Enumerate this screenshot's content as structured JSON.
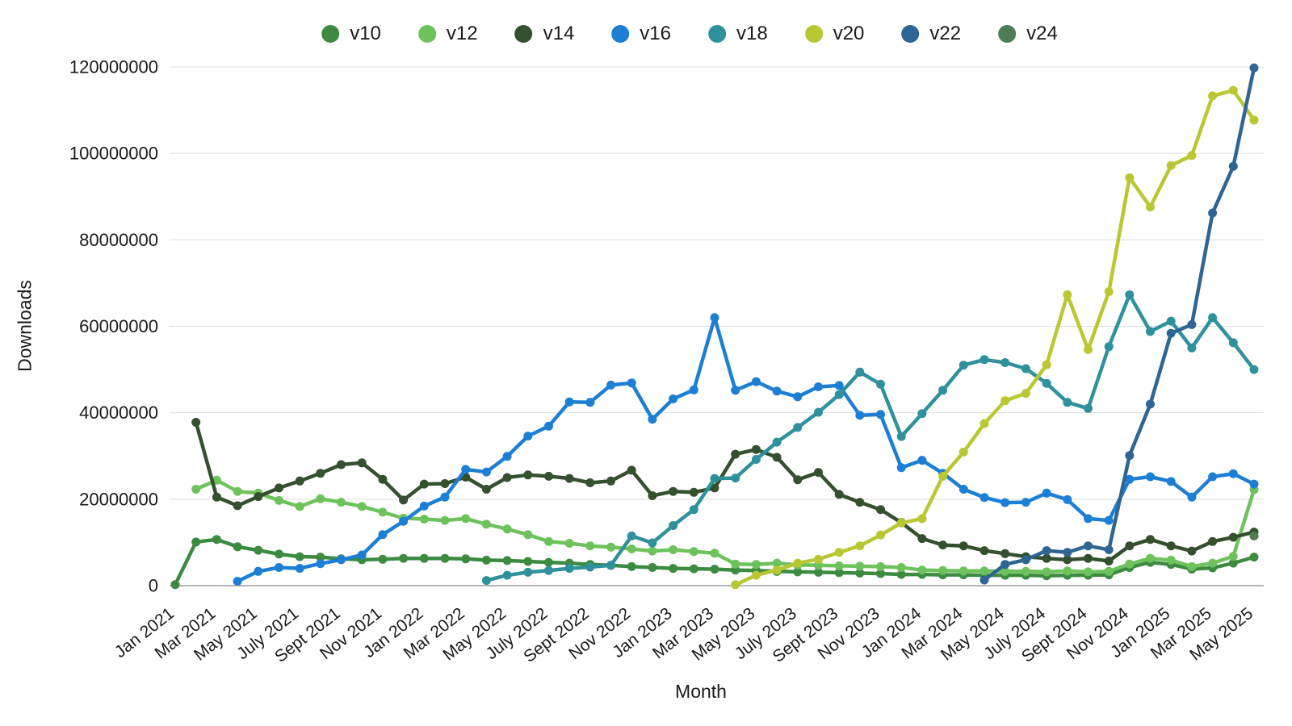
{
  "chart_data": {
    "type": "line",
    "title": "",
    "xlabel": "Month",
    "ylabel": "Downloads",
    "ylim": [
      0,
      120000000
    ],
    "y_ticks": [
      0,
      20000000,
      40000000,
      60000000,
      80000000,
      100000000,
      120000000
    ],
    "x_tick_every": 2,
    "months_total": 53,
    "grid": "horizontal-only",
    "legend_position": "top-center",
    "x_tick_labels": [
      "Jan 2021",
      "Mar 2021",
      "May 2021",
      "July 2021",
      "Sept 2021",
      "Nov 2021",
      "Jan 2022",
      "Mar 2022",
      "May 2022",
      "July 2022",
      "Sept 2022",
      "Nov 2022",
      "Jan 2023",
      "Mar 2023",
      "May 2023",
      "July 2023",
      "Sept 2023",
      "Nov 2023",
      "Jan 2024",
      "Mar 2024",
      "May 2024",
      "July 2024",
      "Sept 2024",
      "Nov 2024",
      "Jan 2025",
      "Mar 2025",
      "May 2025"
    ],
    "series": [
      {
        "name": "v10",
        "color": "#3d8b41",
        "values": [
          250000,
          10100000,
          10700000,
          9000000,
          8200000,
          7300000,
          6700000,
          6600000,
          6200000,
          6000000,
          6100000,
          6300000,
          6300000,
          6300000,
          6200000,
          5900000,
          5800000,
          5600000,
          5400000,
          5200000,
          4900000,
          4700000,
          4400000,
          4200000,
          4000000,
          3900000,
          3800000,
          3600000,
          3500000,
          3300000,
          3200000,
          3100000,
          3000000,
          2900000,
          2800000,
          2600000,
          2600000,
          2500000,
          2500000,
          2400000,
          2400000,
          2400000,
          2300000,
          2400000,
          2400000,
          2500000,
          4200000,
          5400000,
          4900000,
          3800000,
          4100000,
          5200000,
          6600000
        ]
      },
      {
        "name": "v12",
        "color": "#6ec25c",
        "values": [
          null,
          22300000,
          24400000,
          21800000,
          21400000,
          19700000,
          18300000,
          20100000,
          19300000,
          18300000,
          17000000,
          15600000,
          15400000,
          15100000,
          15500000,
          14200000,
          13100000,
          11800000,
          10200000,
          9800000,
          9200000,
          8900000,
          8500000,
          8000000,
          8300000,
          7900000,
          7500000,
          5000000,
          4900000,
          5200000,
          4800000,
          4700000,
          4600000,
          4500000,
          4400000,
          4200000,
          3600000,
          3500000,
          3400000,
          3400000,
          3300000,
          3300000,
          3200000,
          3400000,
          3200000,
          3300000,
          5000000,
          6300000,
          5900000,
          4400000,
          5200000,
          6800000,
          22200000
        ]
      },
      {
        "name": "v14",
        "color": "#34502e",
        "values": [
          null,
          37800000,
          20500000,
          18500000,
          20600000,
          22600000,
          24200000,
          26000000,
          28000000,
          28400000,
          24600000,
          19800000,
          23500000,
          23600000,
          25100000,
          22300000,
          25000000,
          25600000,
          25300000,
          24800000,
          23800000,
          24200000,
          26700000,
          20800000,
          21800000,
          21600000,
          22600000,
          30400000,
          31500000,
          29700000,
          24500000,
          26200000,
          21100000,
          19300000,
          17600000,
          14600000,
          10900000,
          9400000,
          9200000,
          8100000,
          7400000,
          6700000,
          6300000,
          6000000,
          6300000,
          5700000,
          9200000,
          10700000,
          9200000,
          8000000,
          10200000,
          11200000,
          12400000
        ]
      },
      {
        "name": "v16",
        "color": "#1d7fd4",
        "values": [
          null,
          null,
          null,
          1000000,
          3300000,
          4200000,
          4000000,
          5100000,
          6000000,
          7100000,
          11800000,
          14900000,
          18400000,
          20500000,
          26900000,
          26300000,
          29900000,
          34600000,
          36900000,
          42500000,
          42400000,
          46400000,
          46900000,
          38500000,
          43200000,
          45300000,
          62000000,
          45200000,
          47200000,
          45000000,
          43700000,
          46000000,
          46300000,
          39400000,
          39600000,
          27300000,
          29000000,
          26000000,
          22300000,
          20400000,
          19200000,
          19300000,
          21400000,
          19900000,
          15500000,
          15100000,
          24600000,
          25200000,
          24100000,
          20500000,
          25200000,
          25900000,
          23500000
        ]
      },
      {
        "name": "v18",
        "color": "#2f919b",
        "values": [
          null,
          null,
          null,
          null,
          null,
          null,
          null,
          null,
          null,
          null,
          null,
          null,
          null,
          null,
          null,
          1200000,
          2400000,
          3100000,
          3500000,
          4000000,
          4300000,
          4700000,
          11500000,
          9900000,
          13900000,
          17600000,
          24800000,
          24900000,
          29200000,
          33200000,
          36600000,
          40100000,
          44200000,
          49400000,
          46600000,
          34500000,
          39800000,
          45200000,
          51000000,
          52300000,
          51600000,
          50200000,
          46800000,
          42400000,
          41000000,
          55300000,
          67300000,
          58800000,
          61200000,
          55000000,
          62000000,
          56200000,
          50000000
        ]
      },
      {
        "name": "v20",
        "color": "#b9c832",
        "values": [
          null,
          null,
          null,
          null,
          null,
          null,
          null,
          null,
          null,
          null,
          null,
          null,
          null,
          null,
          null,
          null,
          null,
          null,
          null,
          null,
          null,
          null,
          null,
          null,
          null,
          null,
          null,
          200000,
          2400000,
          3600000,
          5200000,
          6100000,
          7700000,
          9200000,
          11700000,
          14500000,
          15500000,
          25300000,
          30900000,
          37500000,
          42800000,
          44500000,
          51100000,
          67300000,
          54600000,
          68000000,
          94400000,
          87600000,
          97200000,
          99500000,
          113300000,
          114600000,
          107700000
        ]
      },
      {
        "name": "v22",
        "color": "#2e6593",
        "values": [
          null,
          null,
          null,
          null,
          null,
          null,
          null,
          null,
          null,
          null,
          null,
          null,
          null,
          null,
          null,
          null,
          null,
          null,
          null,
          null,
          null,
          null,
          null,
          null,
          null,
          null,
          null,
          null,
          null,
          null,
          null,
          null,
          null,
          null,
          null,
          null,
          null,
          null,
          null,
          1300000,
          4900000,
          6000000,
          8100000,
          7700000,
          9200000,
          8300000,
          30100000,
          42000000,
          58400000,
          60400000,
          86200000,
          97000000,
          119800000
        ]
      },
      {
        "name": "v24",
        "color": "#4e7d52",
        "values": [
          null,
          null,
          null,
          null,
          null,
          null,
          null,
          null,
          null,
          null,
          null,
          null,
          null,
          null,
          null,
          null,
          null,
          null,
          null,
          null,
          null,
          null,
          null,
          null,
          null,
          null,
          null,
          null,
          null,
          null,
          null,
          null,
          null,
          null,
          null,
          null,
          null,
          null,
          null,
          null,
          null,
          null,
          null,
          null,
          null,
          null,
          null,
          null,
          null,
          null,
          null,
          null,
          11500000
        ]
      }
    ]
  }
}
